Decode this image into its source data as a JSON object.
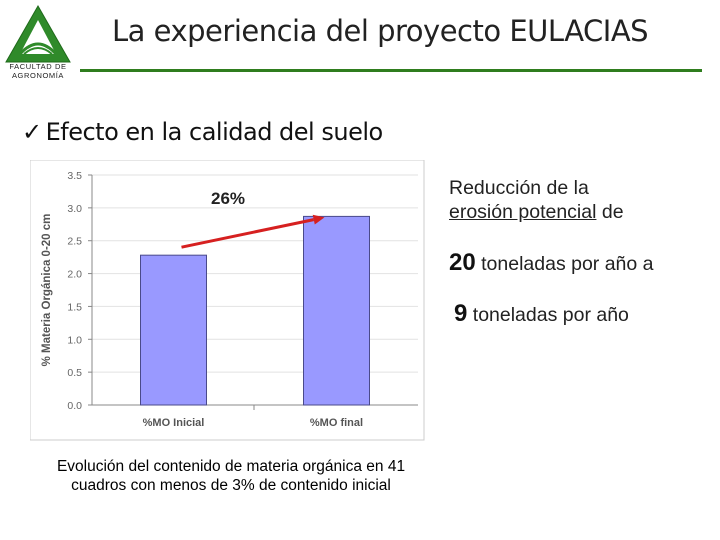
{
  "header": {
    "logo_lines": [
      "FACULTAD DE",
      "AGRONOMÍA"
    ],
    "title": "La experiencia del proyecto EULACIAS"
  },
  "bullet": {
    "mark": "✓",
    "text": "Efecto en la calidad del suelo"
  },
  "chart_data": {
    "type": "bar",
    "categories": [
      "%MO Inicial",
      "%MO final"
    ],
    "values": [
      2.28,
      2.87
    ],
    "ylabel": "% Materia Orgánica 0-20 cm",
    "ylim": [
      0,
      3.5
    ],
    "yticks": [
      "0.0",
      "0.5",
      "1.0",
      "1.5",
      "2.0",
      "2.5",
      "3.0",
      "3.5"
    ],
    "annotation": "26%",
    "bar_color": "#9999ff",
    "arrow_color": "#d62020",
    "grid": true,
    "legend": "none"
  },
  "caption": {
    "line1": "Evolución del contenido de materia orgánica en 41",
    "line2": "cuadros con menos de 3% de contenido inicial"
  },
  "side_text": {
    "line1": "Reducción de la",
    "line2_underlined": "erosión potencial",
    "line2_rest": " de",
    "value1": "20",
    "line3_rest": " toneladas por año a",
    "value2": "9",
    "line4_rest": " toneladas por año"
  }
}
